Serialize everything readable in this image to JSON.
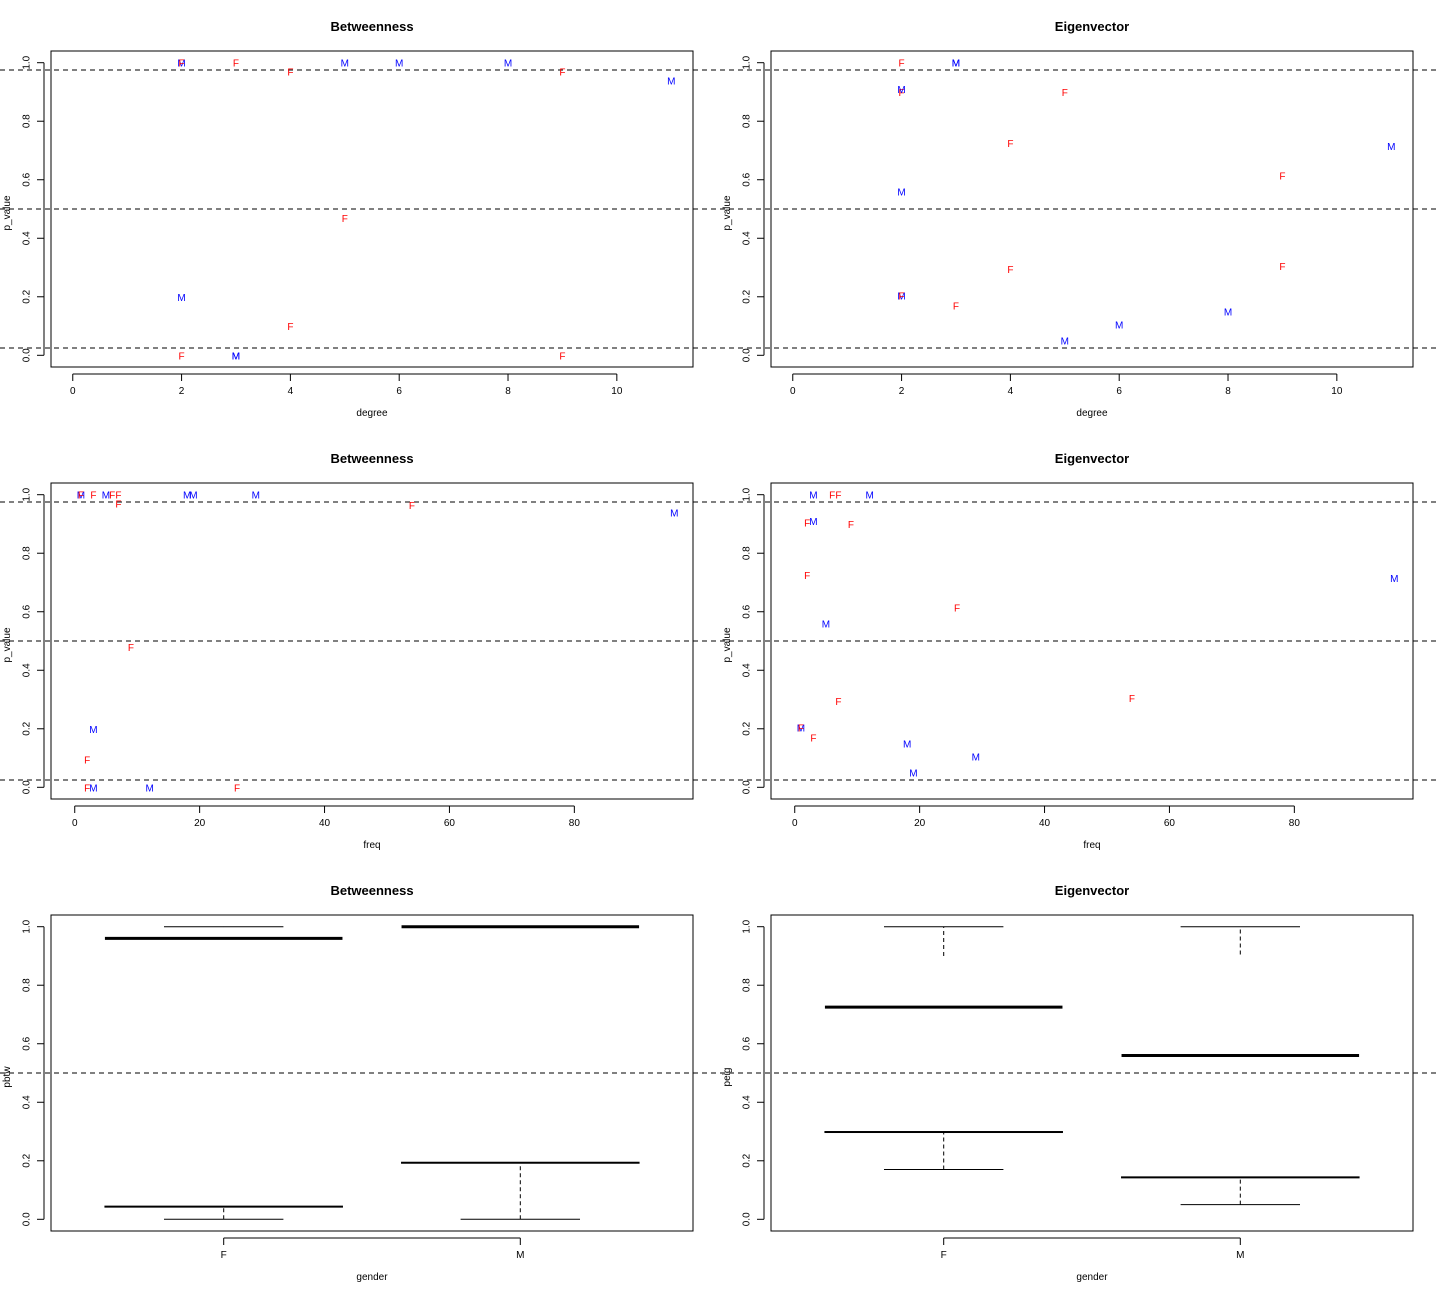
{
  "colors": {
    "F": "#ff0000",
    "M": "#0000ff",
    "box": "#d3d3d3"
  },
  "chart_data": [
    {
      "id": "betw-degree",
      "type": "scatter",
      "title": "Betweenness",
      "xlabel": "degree",
      "ylabel": "p_value",
      "xlim": [
        -0.4,
        11.4
      ],
      "ylim": [
        1.04,
        -0.04
      ],
      "xticks": [
        0,
        2,
        4,
        6,
        8,
        10
      ],
      "yticks": [
        0.0,
        0.2,
        0.4,
        0.6,
        0.8,
        1.0
      ],
      "ytick_labels": [
        "0.0",
        "0.2",
        "0.4",
        "0.6",
        "0.8",
        "1.0"
      ],
      "hlines": [
        0.025,
        0.5,
        0.975
      ],
      "points": [
        {
          "x": 2,
          "y": 0.0,
          "label": "F"
        },
        {
          "x": 3,
          "y": 0.0,
          "label": "M"
        },
        {
          "x": 3,
          "y": 0.0,
          "label": "M"
        },
        {
          "x": 9,
          "y": 0.0,
          "label": "F"
        },
        {
          "x": 4,
          "y": 0.1,
          "label": "F"
        },
        {
          "x": 2,
          "y": 0.2,
          "label": "M"
        },
        {
          "x": 5,
          "y": 0.47,
          "label": "F"
        },
        {
          "x": 11,
          "y": 0.94,
          "label": "M"
        },
        {
          "x": 4,
          "y": 0.97,
          "label": "F"
        },
        {
          "x": 9,
          "y": 0.97,
          "label": "F"
        },
        {
          "x": 2,
          "y": 1.0,
          "label": "M"
        },
        {
          "x": 2,
          "y": 1.0,
          "label": "F"
        },
        {
          "x": 3,
          "y": 1.0,
          "label": "F"
        },
        {
          "x": 5,
          "y": 1.0,
          "label": "M"
        },
        {
          "x": 6,
          "y": 1.0,
          "label": "M"
        },
        {
          "x": 8,
          "y": 1.0,
          "label": "M"
        }
      ]
    },
    {
      "id": "eig-degree",
      "type": "scatter",
      "title": "Eigenvector",
      "xlabel": "degree",
      "ylabel": "p_value",
      "xlim": [
        -0.4,
        11.4
      ],
      "ylim": [
        1.04,
        -0.04
      ],
      "xticks": [
        0,
        2,
        4,
        6,
        8,
        10
      ],
      "yticks": [
        0.0,
        0.2,
        0.4,
        0.6,
        0.8,
        1.0
      ],
      "ytick_labels": [
        "0.0",
        "0.2",
        "0.4",
        "0.6",
        "0.8",
        "1.0"
      ],
      "hlines": [
        0.025,
        0.5,
        0.975
      ],
      "points": [
        {
          "x": 5,
          "y": 0.05,
          "label": "M"
        },
        {
          "x": 6,
          "y": 0.105,
          "label": "M"
        },
        {
          "x": 8,
          "y": 0.15,
          "label": "M"
        },
        {
          "x": 3,
          "y": 0.17,
          "label": "F"
        },
        {
          "x": 2,
          "y": 0.205,
          "label": "M"
        },
        {
          "x": 2,
          "y": 0.205,
          "label": "F"
        },
        {
          "x": 4,
          "y": 0.295,
          "label": "F"
        },
        {
          "x": 9,
          "y": 0.305,
          "label": "F"
        },
        {
          "x": 2,
          "y": 0.56,
          "label": "M"
        },
        {
          "x": 9,
          "y": 0.615,
          "label": "F"
        },
        {
          "x": 4,
          "y": 0.725,
          "label": "F"
        },
        {
          "x": 11,
          "y": 0.715,
          "label": "M"
        },
        {
          "x": 5,
          "y": 0.9,
          "label": "F"
        },
        {
          "x": 2,
          "y": 0.9,
          "label": "F"
        },
        {
          "x": 2,
          "y": 0.91,
          "label": "M"
        },
        {
          "x": 2,
          "y": 1.0,
          "label": "F"
        },
        {
          "x": 3,
          "y": 1.0,
          "label": "M"
        },
        {
          "x": 3,
          "y": 1.0,
          "label": "M"
        }
      ]
    },
    {
      "id": "betw-freq",
      "type": "scatter",
      "title": "Betweenness",
      "xlabel": "freq",
      "ylabel": "p_value",
      "xlim": [
        -3.8,
        99
      ],
      "ylim": [
        1.04,
        -0.04
      ],
      "xticks": [
        0,
        20,
        40,
        60,
        80
      ],
      "yticks": [
        0.0,
        0.2,
        0.4,
        0.6,
        0.8,
        1.0
      ],
      "ytick_labels": [
        "0.0",
        "0.2",
        "0.4",
        "0.6",
        "0.8",
        "1.0"
      ],
      "hlines": [
        0.025,
        0.5,
        0.975
      ],
      "points": [
        {
          "x": 2,
          "y": 0.0,
          "label": "F"
        },
        {
          "x": 3,
          "y": 0.0,
          "label": "M"
        },
        {
          "x": 12,
          "y": 0.0,
          "label": "M"
        },
        {
          "x": 26,
          "y": 0.0,
          "label": "F"
        },
        {
          "x": 2,
          "y": 0.095,
          "label": "F"
        },
        {
          "x": 3,
          "y": 0.2,
          "label": "M"
        },
        {
          "x": 9,
          "y": 0.48,
          "label": "F"
        },
        {
          "x": 96,
          "y": 0.94,
          "label": "M"
        },
        {
          "x": 7,
          "y": 0.97,
          "label": "F"
        },
        {
          "x": 54,
          "y": 0.965,
          "label": "F"
        },
        {
          "x": 1,
          "y": 1.0,
          "label": "M"
        },
        {
          "x": 1,
          "y": 1.0,
          "label": "F"
        },
        {
          "x": 3,
          "y": 1.0,
          "label": "F"
        },
        {
          "x": 5,
          "y": 1.0,
          "label": "M"
        },
        {
          "x": 6,
          "y": 1.0,
          "label": "F"
        },
        {
          "x": 7,
          "y": 1.0,
          "label": "F"
        },
        {
          "x": 18,
          "y": 1.0,
          "label": "M"
        },
        {
          "x": 19,
          "y": 1.0,
          "label": "M"
        },
        {
          "x": 29,
          "y": 1.0,
          "label": "M"
        }
      ]
    },
    {
      "id": "eig-freq",
      "type": "scatter",
      "title": "Eigenvector",
      "xlabel": "freq",
      "ylabel": "p_value",
      "xlim": [
        -3.8,
        99
      ],
      "ylim": [
        1.04,
        -0.04
      ],
      "xticks": [
        0,
        20,
        40,
        60,
        80
      ],
      "yticks": [
        0.0,
        0.2,
        0.4,
        0.6,
        0.8,
        1.0
      ],
      "ytick_labels": [
        "0.0",
        "0.2",
        "0.4",
        "0.6",
        "0.8",
        "1.0"
      ],
      "hlines": [
        0.025,
        0.5,
        0.975
      ],
      "points": [
        {
          "x": 19,
          "y": 0.05,
          "label": "M"
        },
        {
          "x": 29,
          "y": 0.105,
          "label": "M"
        },
        {
          "x": 18,
          "y": 0.15,
          "label": "M"
        },
        {
          "x": 3,
          "y": 0.17,
          "label": "F"
        },
        {
          "x": 1,
          "y": 0.205,
          "label": "M"
        },
        {
          "x": 1,
          "y": 0.205,
          "label": "F"
        },
        {
          "x": 7,
          "y": 0.295,
          "label": "F"
        },
        {
          "x": 54,
          "y": 0.305,
          "label": "F"
        },
        {
          "x": 5,
          "y": 0.56,
          "label": "M"
        },
        {
          "x": 26,
          "y": 0.615,
          "label": "F"
        },
        {
          "x": 2,
          "y": 0.725,
          "label": "F"
        },
        {
          "x": 96,
          "y": 0.715,
          "label": "M"
        },
        {
          "x": 9,
          "y": 0.9,
          "label": "F"
        },
        {
          "x": 2,
          "y": 0.905,
          "label": "F"
        },
        {
          "x": 3,
          "y": 0.91,
          "label": "M"
        },
        {
          "x": 3,
          "y": 1.0,
          "label": "M"
        },
        {
          "x": 6,
          "y": 1.0,
          "label": "F"
        },
        {
          "x": 7,
          "y": 1.0,
          "label": "F"
        },
        {
          "x": 12,
          "y": 1.0,
          "label": "M"
        }
      ]
    },
    {
      "id": "betw-gender",
      "type": "boxplot",
      "title": "Betweenness",
      "xlabel": "gender",
      "ylabel": "pbtw",
      "ylim": [
        1.04,
        -0.04
      ],
      "yticks": [
        0.0,
        0.2,
        0.4,
        0.6,
        0.8,
        1.0
      ],
      "ytick_labels": [
        "0.0",
        "0.2",
        "0.4",
        "0.6",
        "0.8",
        "1.0"
      ],
      "hlines": [
        0.5
      ],
      "categories": [
        "F",
        "M"
      ],
      "boxes": [
        {
          "name": "F",
          "whisker_low": 0.0,
          "q1": 0.045,
          "median": 0.96,
          "q3": 1.0,
          "whisker_high": 1.0
        },
        {
          "name": "M",
          "whisker_low": 0.0,
          "q1": 0.195,
          "median": 1.0,
          "q3": 1.0,
          "whisker_high": 1.0
        }
      ]
    },
    {
      "id": "eig-gender",
      "type": "boxplot",
      "title": "Eigenvector",
      "xlabel": "gender",
      "ylabel": "peig",
      "ylim": [
        1.04,
        -0.04
      ],
      "yticks": [
        0.0,
        0.2,
        0.4,
        0.6,
        0.8,
        1.0
      ],
      "ytick_labels": [
        "0.0",
        "0.2",
        "0.4",
        "0.6",
        "0.8",
        "1.0"
      ],
      "hlines": [
        0.5
      ],
      "categories": [
        "F",
        "M"
      ],
      "boxes": [
        {
          "name": "F",
          "whisker_low": 0.17,
          "q1": 0.3,
          "median": 0.725,
          "q3": 0.9,
          "whisker_high": 1.0
        },
        {
          "name": "M",
          "whisker_low": 0.05,
          "q1": 0.145,
          "median": 0.56,
          "q3": 0.905,
          "whisker_high": 1.0
        }
      ]
    }
  ]
}
